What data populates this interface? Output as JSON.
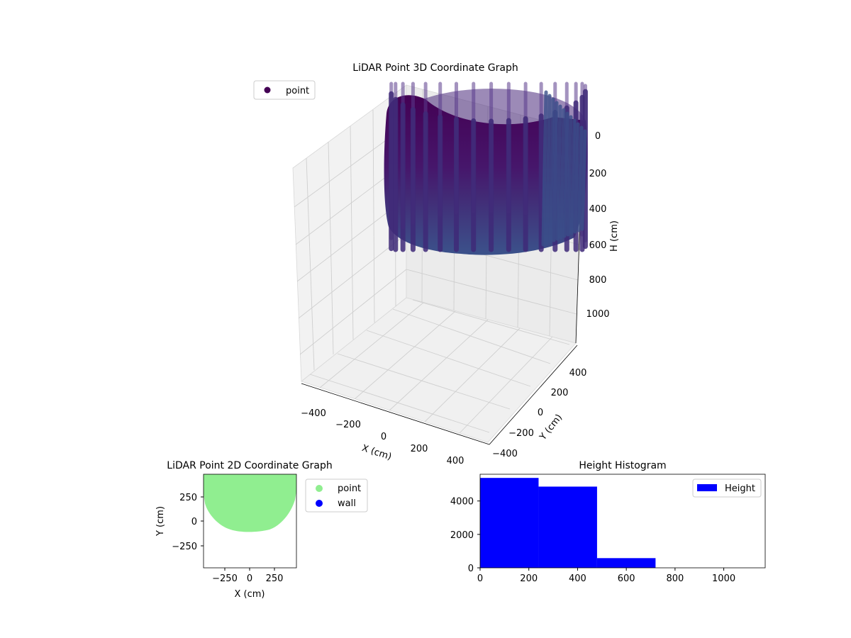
{
  "chart_data": [
    {
      "type": "scatter3d",
      "title": "LiDAR Point 3D Coordinate Graph",
      "xlabel": "X (cm)",
      "ylabel": "Y (cm)",
      "zlabel": "H (cm)",
      "xlim": [
        -500,
        500
      ],
      "ylim": [
        -500,
        500
      ],
      "zlim": [
        1150,
        -50
      ],
      "x_ticks": [
        "−400",
        "−200",
        "0",
        "200",
        "400"
      ],
      "y_ticks": [
        "−400",
        "−200",
        "0",
        "200",
        "400"
      ],
      "z_ticks": [
        "0",
        "200",
        "400",
        "600",
        "800",
        "1000"
      ],
      "legend": [
        "point"
      ],
      "legend_position": "upper-left",
      "grid": true,
      "colormap": "viridis",
      "series": [
        {
          "name": "point",
          "shape": "partial cylindrical shell (room walls) plus vertical scan columns",
          "radius": 450,
          "h_range": [
            0,
            520
          ],
          "color_top": "#440154",
          "color_bottom": "#3b528b"
        }
      ]
    },
    {
      "type": "scatter",
      "title": "LiDAR Point 2D Coordinate Graph",
      "xlabel": "X (cm)",
      "ylabel": "Y (cm)",
      "xlim": [
        -480,
        480
      ],
      "ylim": [
        -480,
        480
      ],
      "x_ticks": [
        "−250",
        "0",
        "250"
      ],
      "y_ticks": [
        "−250",
        "0",
        "250"
      ],
      "legend": [
        "point",
        "wall"
      ],
      "legend_position": "outside-right",
      "series": [
        {
          "name": "point",
          "color": "#90ee90",
          "region": "filled half-disc, y from -120 to 480"
        },
        {
          "name": "wall",
          "color": "#0000ff",
          "points": []
        }
      ]
    },
    {
      "type": "bar",
      "title": "Height Histogram",
      "xlabel": "",
      "ylabel": "",
      "xlim": [
        0,
        1170
      ],
      "ylim": [
        0,
        5600
      ],
      "x_ticks": [
        "0",
        "200",
        "400",
        "600",
        "800",
        "1000"
      ],
      "y_ticks": [
        "0",
        "2000",
        "4000"
      ],
      "legend": [
        "Height"
      ],
      "legend_position": "upper-right",
      "color": "#0000ff",
      "bins": [
        {
          "start": 0,
          "end": 240,
          "count": 5380
        },
        {
          "start": 240,
          "end": 480,
          "count": 4860
        },
        {
          "start": 480,
          "end": 720,
          "count": 580
        },
        {
          "start": 720,
          "end": 960,
          "count": 0
        },
        {
          "start": 960,
          "end": 1170,
          "count": 0
        }
      ]
    }
  ]
}
